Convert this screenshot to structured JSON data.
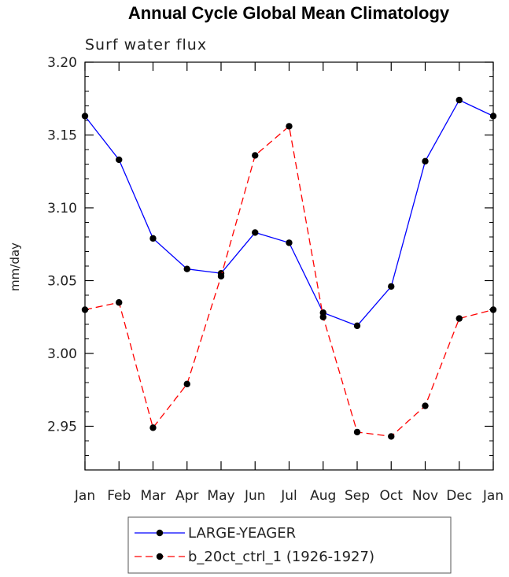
{
  "chart_data": {
    "type": "line",
    "title": "Annual Cycle Global Mean Climatology",
    "subtitle": "Surf water flux",
    "xlabel": "",
    "ylabel": "mm/day",
    "categories": [
      "Jan",
      "Feb",
      "Mar",
      "Apr",
      "May",
      "Jun",
      "Jul",
      "Aug",
      "Sep",
      "Oct",
      "Nov",
      "Dec",
      "Jan"
    ],
    "ylim": [
      2.92,
      3.2
    ],
    "yticks": [
      2.95,
      3.0,
      3.05,
      3.1,
      3.15,
      3.2
    ],
    "ytick_labels": [
      "2.95",
      "3.00",
      "3.05",
      "3.10",
      "3.15",
      "3.20"
    ],
    "grid": false,
    "legend_position": "bottom-center",
    "series": [
      {
        "name": "LARGE-YEAGER",
        "color": "#0000ff",
        "dash": "solid",
        "marker": "filled-circle",
        "values": [
          3.163,
          3.133,
          3.079,
          3.058,
          3.055,
          3.083,
          3.076,
          3.028,
          3.019,
          3.046,
          3.132,
          3.174,
          3.163
        ]
      },
      {
        "name": "b_20ct_ctrl_1 (1926-1927)",
        "color": "#ff0000",
        "dash": "dashed",
        "marker": "filled-circle",
        "values": [
          3.03,
          3.035,
          2.949,
          2.979,
          3.053,
          3.136,
          3.156,
          3.025,
          2.946,
          2.943,
          2.964,
          3.024,
          3.03
        ]
      }
    ]
  }
}
